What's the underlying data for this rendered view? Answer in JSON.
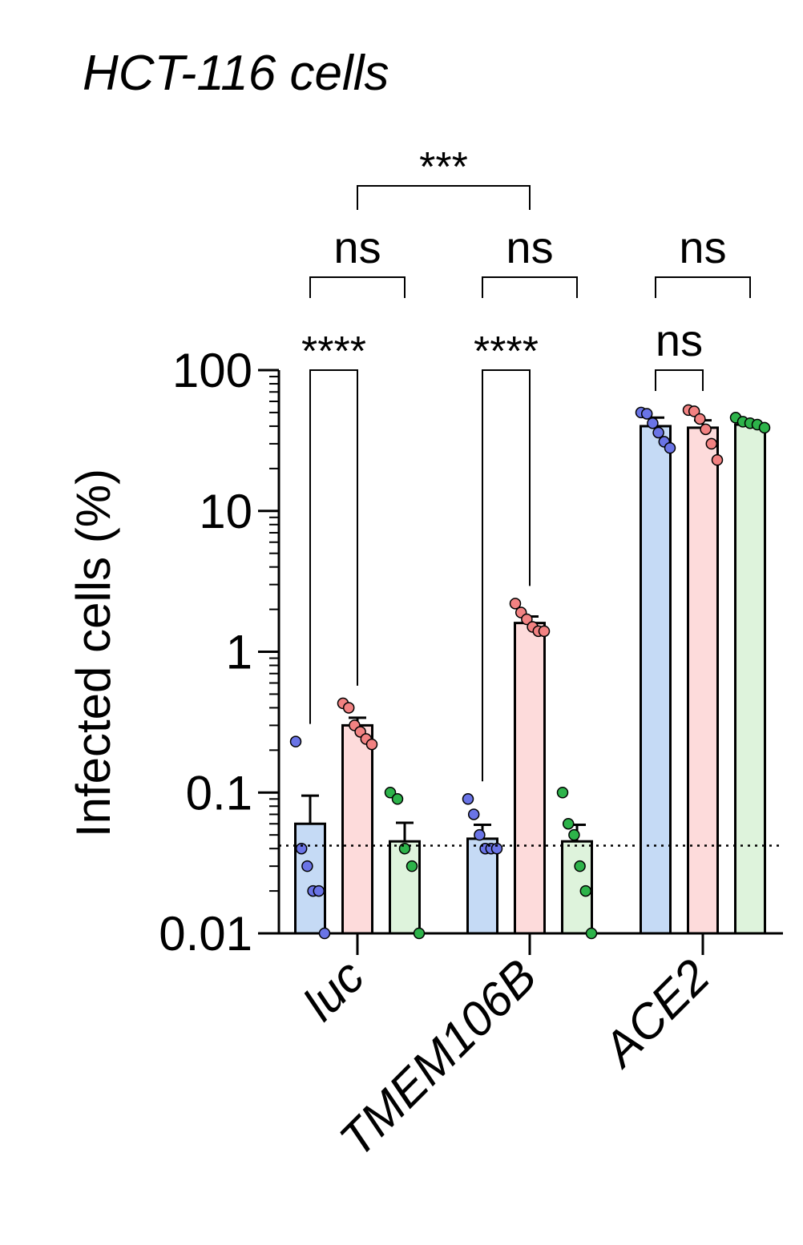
{
  "chart_data": {
    "type": "bar",
    "title": "HCT-116 cells",
    "ylabel": "Infected cells (%)",
    "xlabel": "",
    "yscale": "log",
    "ylim": [
      0.01,
      100
    ],
    "yticks": [
      "0.01",
      "0.1",
      "1",
      "10",
      "100"
    ],
    "categories": [
      "luc",
      "TMEM106B",
      "ACE2"
    ],
    "detection_limit": 0.042,
    "colors": {
      "fills": [
        "#c5daf5",
        "#fddbdb",
        "#def3dc"
      ],
      "dots": [
        "#6a74e6",
        "#f28282",
        "#2db34a"
      ]
    },
    "series": [
      {
        "values": [
          0.06,
          0.047,
          40
        ],
        "errors": [
          0.035,
          0.012,
          6
        ],
        "points": [
          [
            0.23,
            0.04,
            0.03,
            0.02,
            0.02,
            0.01
          ],
          [
            0.09,
            0.07,
            0.05,
            0.04,
            0.04,
            0.04
          ],
          [
            50,
            49,
            42,
            36,
            31,
            28
          ]
        ]
      },
      {
        "values": [
          0.3,
          1.6,
          39
        ],
        "errors": [
          0.04,
          0.18,
          5
        ],
        "points": [
          [
            0.43,
            0.4,
            0.3,
            0.27,
            0.24,
            0.22
          ],
          [
            2.2,
            1.9,
            1.7,
            1.5,
            1.4,
            1.4
          ],
          [
            52,
            51,
            45,
            38,
            30,
            23
          ]
        ]
      },
      {
        "values": [
          0.045,
          0.045,
          41
        ],
        "errors": [
          0.016,
          0.014,
          2
        ],
        "points": [
          [
            0.1,
            0.09,
            0.04,
            0.03,
            0.01
          ],
          [
            0.1,
            0.06,
            0.05,
            0.03,
            0.02,
            0.01
          ],
          [
            46,
            43,
            42,
            41,
            39
          ]
        ]
      }
    ],
    "comparisons": [
      {
        "label": "****",
        "group": 0,
        "from": 0,
        "to": 1
      },
      {
        "label": "****",
        "group": 1,
        "from": 0,
        "to": 1
      },
      {
        "label": "ns",
        "group": 2,
        "from": 0,
        "to": 1
      },
      {
        "label": "ns",
        "group": 0,
        "from": 0,
        "to": 2
      },
      {
        "label": "ns",
        "group": 1,
        "from": 0,
        "to": 2
      },
      {
        "label": "ns",
        "group": 2,
        "from": 0,
        "to": 2
      },
      {
        "label": "***",
        "group_from": 0,
        "group_to": 1,
        "series": 1
      }
    ]
  }
}
